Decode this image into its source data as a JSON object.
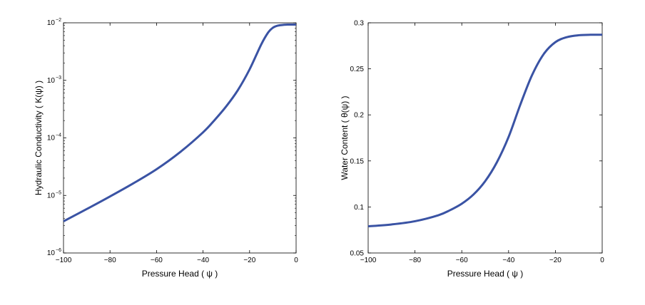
{
  "chart_data": [
    {
      "type": "line",
      "xlabel": "Pressure Head ( ψ )",
      "ylabel": "Hydraulic Conductivity ( K(ψ) )",
      "xlim": [
        -100,
        0
      ],
      "ylim": [
        1e-06,
        0.01
      ],
      "yscale": "log",
      "grid": false,
      "x_ticks": [
        "−100",
        "−80",
        "−60",
        "−40",
        "−20",
        "0"
      ],
      "y_ticks": [
        {
          "base": "10",
          "exp": "−6"
        },
        {
          "base": "10",
          "exp": "−5"
        },
        {
          "base": "10",
          "exp": "−4"
        },
        {
          "base": "10",
          "exp": "−3"
        },
        {
          "base": "10",
          "exp": "−2"
        }
      ],
      "color": "#3a53a4",
      "series": [
        {
          "x": [
            -100,
            -90,
            -80,
            -70,
            -60,
            -50,
            -40,
            -35,
            -30,
            -25,
            -20,
            -15,
            -12,
            -10,
            -8,
            -5,
            -3,
            0
          ],
          "y": [
            3.55e-06,
            5.8e-06,
            9.6e-06,
            1.62e-05,
            2.85e-05,
            5.6e-05,
            0.000125,
            0.000205,
            0.000355,
            0.00068,
            0.00155,
            0.0042,
            0.0068,
            0.0082,
            0.0089,
            0.00925,
            0.0093,
            0.0093
          ]
        }
      ]
    },
    {
      "type": "line",
      "xlabel": "Pressure Head ( ψ )",
      "ylabel": "Water Content ( θ(ψ) )",
      "xlim": [
        -100,
        0
      ],
      "ylim": [
        0.05,
        0.3
      ],
      "grid": false,
      "x_ticks": [
        "−100",
        "−80",
        "−60",
        "−40",
        "−20",
        "0"
      ],
      "y_ticks": [
        "0.05",
        "0.1",
        "0.15",
        "0.2",
        "0.25",
        "0.3"
      ],
      "color": "#3a53a4",
      "series": [
        {
          "x": [
            -100,
            -90,
            -80,
            -70,
            -65,
            -60,
            -55,
            -50,
            -45,
            -40,
            -35,
            -30,
            -25,
            -20,
            -15,
            -10,
            -5,
            0
          ],
          "y": [
            0.079,
            0.081,
            0.0845,
            0.091,
            0.0965,
            0.1035,
            0.1135,
            0.128,
            0.1485,
            0.176,
            0.211,
            0.243,
            0.266,
            0.279,
            0.2845,
            0.2865,
            0.287,
            0.287
          ]
        }
      ]
    }
  ]
}
